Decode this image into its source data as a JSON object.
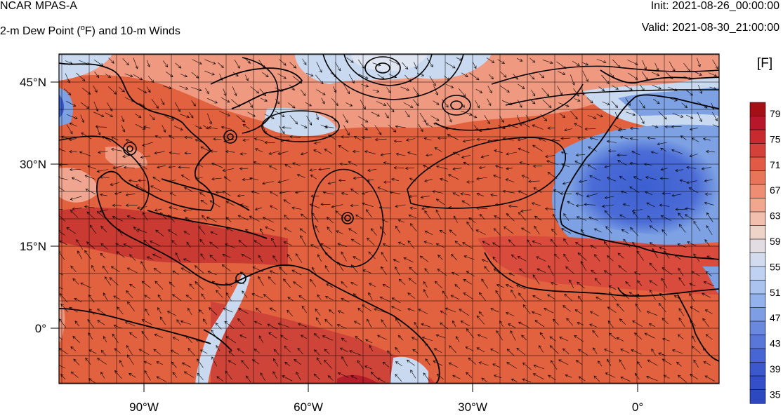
{
  "header": {
    "model_name": "NCAR MPAS-A",
    "field_prefix": "2-m Dew Point (",
    "degree": "o",
    "field_suffix": "F) and 10-m Winds",
    "init_label": "Init: 2021-08-26_00:00:00",
    "valid_label": "Valid: 2021-08-30_21:00:00"
  },
  "map": {
    "lat_labels": [
      "45°N",
      "30°N",
      "15°N",
      "0°"
    ],
    "lon_labels": [
      "90°W",
      "60°W",
      "30°W",
      "0°"
    ],
    "colors": {
      "moist": "#e2613f",
      "very_moist": "#c93a33",
      "moderate": "#ef9980",
      "dry_light": "#c9d9ef",
      "dry": "#7da1e3",
      "very_dry": "#3c5fd1",
      "coast": "#000000",
      "wind_arrow": "#000000",
      "grid": "#000000"
    }
  },
  "colorbar": {
    "unit": "[F]",
    "ticks": [
      "79",
      "75",
      "71",
      "67",
      "63",
      "59",
      "55",
      "51",
      "47",
      "43",
      "39",
      "35"
    ],
    "colors": [
      "#a50f15",
      "#b8162a",
      "#c92a2f",
      "#d6403a",
      "#e05a46",
      "#e87459",
      "#ee8d72",
      "#f1a68f",
      "#f2bfae",
      "#eed3c8",
      "#e2dde2",
      "#d3dcee",
      "#c0d2f2",
      "#aac3ef",
      "#93b1ea",
      "#7d9de4",
      "#6a89de",
      "#5877d8",
      "#4866d3",
      "#3b58cd",
      "#344fc7",
      "#2e48c1"
    ]
  }
}
